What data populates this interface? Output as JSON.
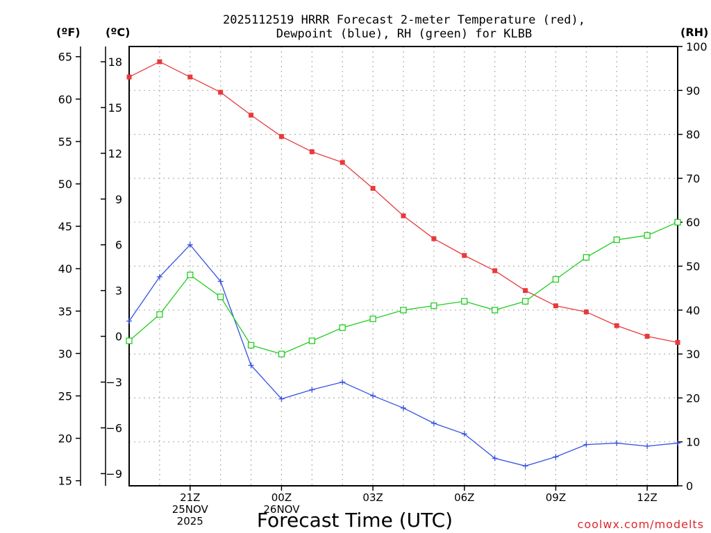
{
  "chart_data": {
    "type": "line",
    "title_line1": "2025112519 HRRR Forecast 2-meter Temperature (red),",
    "title_line2": "Dewpoint (blue), RH (green) for KLBB",
    "xlabel": "Forecast Time (UTC)",
    "credit": "coolwx.com/modelts",
    "units": {
      "fahrenheit": "(ºF)",
      "celsius": "(ºC)",
      "rh": "(RH)"
    },
    "x_hours": [
      0,
      1,
      2,
      3,
      4,
      5,
      6,
      7,
      8,
      9,
      10,
      11,
      12,
      13,
      14,
      15,
      16,
      17,
      18
    ],
    "x_ticks": [
      {
        "hour": 2,
        "lines": [
          "21Z",
          "25NOV",
          "2025"
        ]
      },
      {
        "hour": 5,
        "lines": [
          "00Z",
          "26NOV"
        ]
      },
      {
        "hour": 8,
        "lines": [
          "03Z"
        ]
      },
      {
        "hour": 11,
        "lines": [
          "06Z"
        ]
      },
      {
        "hour": 14,
        "lines": [
          "09Z"
        ]
      },
      {
        "hour": 17,
        "lines": [
          "12Z"
        ]
      }
    ],
    "left_c_axis": {
      "range": [
        -9.8,
        19.0
      ],
      "ticks": [
        -9,
        -6,
        -3,
        0,
        3,
        6,
        9,
        12,
        15,
        18
      ]
    },
    "left_f_axis": {
      "range": [
        14.4,
        66.2
      ],
      "ticks": [
        15,
        20,
        25,
        30,
        35,
        40,
        45,
        50,
        55,
        60,
        65
      ]
    },
    "right_rh_axis": {
      "range": [
        0,
        100
      ],
      "ticks": [
        0,
        10,
        20,
        30,
        40,
        50,
        60,
        70,
        80,
        90,
        100
      ]
    },
    "series": [
      {
        "name": "2-meter Temperature",
        "unit": "C",
        "color": "#e8393b",
        "marker": "filled-square",
        "values": [
          17.0,
          18.0,
          17.0,
          16.0,
          14.5,
          13.1,
          12.1,
          11.4,
          9.7,
          7.9,
          6.4,
          5.3,
          4.3,
          3.0,
          2.0,
          1.6,
          0.7,
          0.0,
          -0.4
        ]
      },
      {
        "name": "Dewpoint",
        "unit": "C",
        "color": "#3550e0",
        "marker": "plus",
        "values": [
          1.0,
          3.9,
          6.0,
          3.6,
          -1.9,
          -4.1,
          -3.5,
          -3.0,
          -3.9,
          -4.7,
          -5.7,
          -6.4,
          -8.0,
          -8.5,
          -7.9,
          -7.1,
          -7.0,
          -7.2,
          -7.0
        ]
      },
      {
        "name": "RH",
        "unit": "%",
        "color": "#22cc22",
        "marker": "open-square",
        "values": [
          33,
          39,
          48,
          43,
          32,
          30,
          33,
          36,
          38,
          40,
          41,
          42,
          40,
          42,
          47,
          52,
          56,
          57,
          60
        ]
      }
    ]
  }
}
